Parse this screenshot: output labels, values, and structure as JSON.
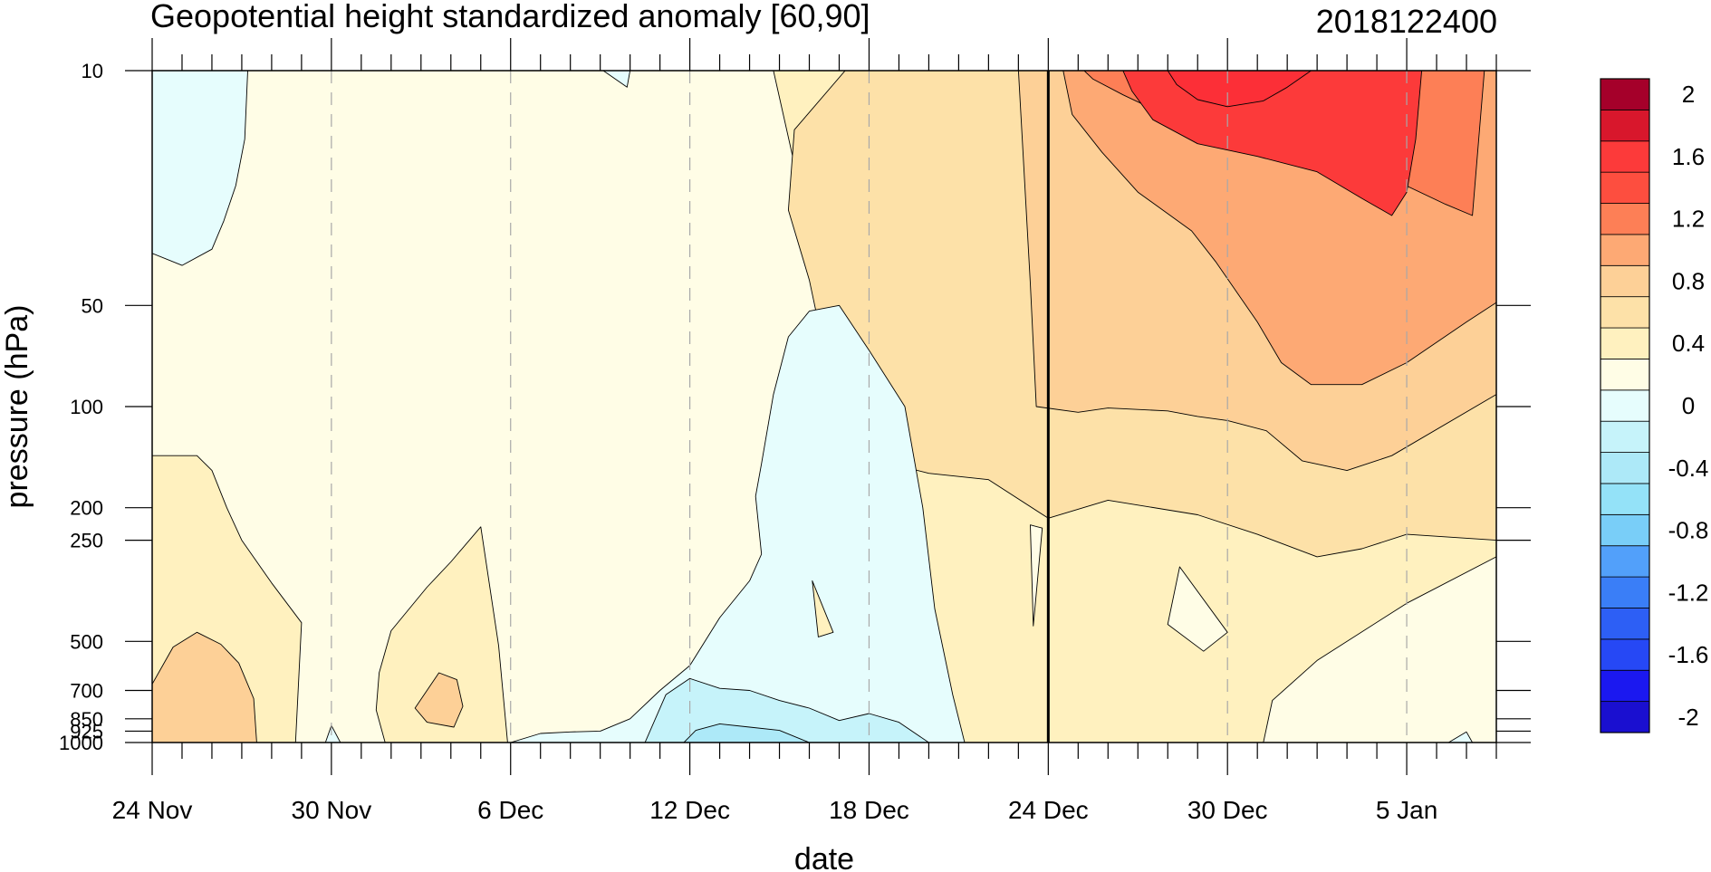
{
  "chart_data": {
    "type": "heatmap",
    "title": "Geopotential height standardized anomaly [60,90]",
    "subtitle": "2018122400",
    "xlabel": "date",
    "ylabel": "pressure (hPa)",
    "x_days_range": [
      0,
      45
    ],
    "x_ticks": [
      {
        "day": 0,
        "label": "24 Nov"
      },
      {
        "day": 6,
        "label": "30 Nov"
      },
      {
        "day": 12,
        "label": "6 Dec"
      },
      {
        "day": 18,
        "label": "12 Dec"
      },
      {
        "day": 24,
        "label": "18 Dec"
      },
      {
        "day": 30,
        "label": "24 Dec"
      },
      {
        "day": 36,
        "label": "30 Dec"
      },
      {
        "day": 42,
        "label": "5 Jan"
      }
    ],
    "y_scale": "log",
    "y_range": [
      1000,
      10
    ],
    "y_ticks": [
      {
        "value": 10,
        "label": "10"
      },
      {
        "value": 50,
        "label": "50"
      },
      {
        "value": 100,
        "label": "100"
      },
      {
        "value": 200,
        "label": "200"
      },
      {
        "value": 250,
        "label": "250"
      },
      {
        "value": 500,
        "label": "500"
      },
      {
        "value": 700,
        "label": "700"
      },
      {
        "value": 850,
        "label": "850"
      },
      {
        "value": 925,
        "label": "925"
      },
      {
        "value": 1000,
        "label": "1000"
      }
    ],
    "current_date_line_day": 30,
    "contour_levels": [
      -2,
      -1.8,
      -1.6,
      -1.4,
      -1.2,
      -1,
      -0.8,
      -0.6,
      -0.4,
      -0.2,
      0,
      0.2,
      0.4,
      0.6,
      0.8,
      1,
      1.2,
      1.4,
      1.6,
      1.8,
      2
    ],
    "colorbar": {
      "colors": [
        "#1a0fd0",
        "#1b18f0",
        "#2648f5",
        "#2d5ff5",
        "#3a7ef7",
        "#52a0fa",
        "#79cef8",
        "#94e2f8",
        "#ade9f8",
        "#c6f3fa",
        "#e6fdfd",
        "#fffde6",
        "#fff1bf",
        "#fde1a8",
        "#fdd097",
        "#fda974",
        "#fd7f56",
        "#fd4e3f",
        "#fc3a3a",
        "#d8172c",
        "#a5002a"
      ],
      "labels": [
        {
          "level": 2,
          "text": "2"
        },
        {
          "level": 1.6,
          "text": "1.6"
        },
        {
          "level": 1.2,
          "text": "1.2"
        },
        {
          "level": 0.8,
          "text": "0.8"
        },
        {
          "level": 0.4,
          "text": "0.4"
        },
        {
          "level": 0,
          "text": "0"
        },
        {
          "level": -0.4,
          "text": "-0.4"
        },
        {
          "level": -0.8,
          "text": "-0.8"
        },
        {
          "level": -1.2,
          "text": "-1.2"
        },
        {
          "level": -1.6,
          "text": "-1.6"
        },
        {
          "level": -2,
          "text": "-2"
        }
      ]
    },
    "regions": [
      {
        "name": "positive-anomaly-0-0.2-background",
        "color": "#fffde6",
        "points": [
          [
            0,
            10
          ],
          [
            45,
            10
          ],
          [
            45,
            1000
          ],
          [
            0,
            1000
          ]
        ]
      },
      {
        "name": "positive-anomaly-0.2-0.4-late-period",
        "color": "#fff1bf",
        "points": [
          [
            20.8,
            10
          ],
          [
            45,
            10
          ],
          [
            45,
            280
          ],
          [
            42,
            385
          ],
          [
            39,
            570
          ],
          [
            37.5,
            750
          ],
          [
            37.2,
            1000
          ],
          [
            26.5,
            1000
          ],
          [
            25.8,
            860
          ],
          [
            25.4,
            610
          ],
          [
            25.1,
            430
          ],
          [
            24.3,
            245
          ],
          [
            23.3,
            145
          ],
          [
            22.8,
            78
          ],
          [
            22,
            30
          ]
        ]
      },
      {
        "name": "positive-anomaly-0.4-0.6-upper-late",
        "color": "#fde1a8",
        "points": [
          [
            23.2,
            10
          ],
          [
            45,
            10
          ],
          [
            45,
            250
          ],
          [
            42,
            240
          ],
          [
            40.5,
            265
          ],
          [
            39,
            280
          ],
          [
            37,
            240
          ],
          [
            35,
            210
          ],
          [
            32,
            190
          ],
          [
            30,
            215
          ],
          [
            28,
            165
          ],
          [
            26,
            158
          ],
          [
            25,
            150
          ],
          [
            24,
            148
          ],
          [
            23.3,
            130
          ],
          [
            22.6,
            75
          ],
          [
            22,
            42
          ],
          [
            21.3,
            26
          ],
          [
            21.5,
            15
          ]
        ]
      },
      {
        "name": "positive-anomaly-0.6-0.8-upper-late",
        "color": "#fdd097",
        "points": [
          [
            29,
            10
          ],
          [
            45,
            10
          ],
          [
            45,
            92
          ],
          [
            41.5,
            140
          ],
          [
            40,
            155
          ],
          [
            38.5,
            145
          ],
          [
            37.3,
            118
          ],
          [
            36,
            110
          ],
          [
            35,
            107
          ],
          [
            34,
            103
          ],
          [
            32,
            101
          ],
          [
            31,
            104
          ],
          [
            29.6,
            100
          ],
          [
            29.4,
            43
          ]
        ]
      },
      {
        "name": "positive-anomaly-0.8-1-upper-late",
        "color": "#fda974",
        "points": [
          [
            30.5,
            10
          ],
          [
            45,
            10
          ],
          [
            45,
            49
          ],
          [
            44,
            56
          ],
          [
            42,
            74
          ],
          [
            40.5,
            86
          ],
          [
            38.8,
            86
          ],
          [
            37.8,
            74
          ],
          [
            37,
            56
          ],
          [
            35.6,
            37
          ],
          [
            34.8,
            30
          ],
          [
            33,
            23
          ],
          [
            31.8,
            17.5
          ],
          [
            30.8,
            13.5
          ]
        ]
      },
      {
        "name": "positive-anomaly-1-1.2-stratosphere",
        "color": "#fd7f56",
        "points": [
          [
            31.2,
            10
          ],
          [
            44.6,
            10
          ],
          [
            44.2,
            27
          ],
          [
            43.3,
            25
          ],
          [
            41,
            20
          ],
          [
            38.5,
            17
          ],
          [
            36.5,
            15
          ],
          [
            35,
            14
          ],
          [
            33.5,
            13
          ],
          [
            32.5,
            11.8
          ],
          [
            31.5,
            10.6
          ]
        ]
      },
      {
        "name": "positive-anomaly-1.2-1.4-stratosphere-core",
        "color": "#fc3a3a",
        "points": [
          [
            32.5,
            10
          ],
          [
            42.5,
            10
          ],
          [
            42.3,
            16
          ],
          [
            42,
            23
          ],
          [
            41.5,
            27
          ],
          [
            40.5,
            24
          ],
          [
            39,
            20
          ],
          [
            37,
            18
          ],
          [
            35,
            16.5
          ],
          [
            33.5,
            14
          ],
          [
            32.8,
            11.5
          ]
        ]
      },
      {
        "name": "positive-anomaly-1.4-1.6-stratosphere-peak",
        "color": "#fc2f37",
        "points": [
          [
            34,
            10
          ],
          [
            38.8,
            10
          ],
          [
            38,
            11.2
          ],
          [
            37.2,
            12.3
          ],
          [
            36,
            12.8
          ],
          [
            35,
            12.2
          ],
          [
            34.3,
            11
          ]
        ]
      },
      {
        "name": "negative-anomaly-top-left",
        "color": "#e6fdfd",
        "points": [
          [
            0,
            10
          ],
          [
            3.2,
            10
          ],
          [
            3.1,
            16
          ],
          [
            2.8,
            22
          ],
          [
            2.4,
            28
          ],
          [
            2,
            34
          ],
          [
            1,
            38
          ],
          [
            0,
            35
          ]
        ]
      },
      {
        "name": "negative-anomaly-top-small",
        "color": "#e6fdfd",
        "points": [
          [
            15.1,
            10
          ],
          [
            16,
            10
          ],
          [
            15.9,
            11.2
          ]
        ]
      },
      {
        "name": "negative-anomaly-mid-troposphere",
        "color": "#e6fdfd",
        "points": [
          [
            12,
            1000
          ],
          [
            13,
            940
          ],
          [
            14,
            930
          ],
          [
            15,
            925
          ],
          [
            16,
            850
          ],
          [
            17,
            700
          ],
          [
            18,
            590
          ],
          [
            19,
            425
          ],
          [
            20,
            330
          ],
          [
            20.4,
            275
          ],
          [
            20.2,
            185
          ],
          [
            20.4,
            148
          ],
          [
            20.8,
            92
          ],
          [
            21.3,
            62
          ],
          [
            22,
            52
          ],
          [
            23,
            50
          ],
          [
            24,
            68
          ],
          [
            25.2,
            100
          ],
          [
            25.8,
            200
          ],
          [
            26.2,
            400
          ],
          [
            26.8,
            720
          ],
          [
            27.2,
            1000
          ]
        ]
      },
      {
        "name": "negative-anomaly-lower-0.2-0.4",
        "color": "#c6f3fa",
        "points": [
          [
            16.5,
            1000
          ],
          [
            17.2,
            720
          ],
          [
            18,
            645
          ],
          [
            19,
            690
          ],
          [
            20,
            700
          ],
          [
            21,
            750
          ],
          [
            22,
            790
          ],
          [
            23,
            860
          ],
          [
            24,
            820
          ],
          [
            25,
            870
          ],
          [
            26,
            1000
          ]
        ]
      },
      {
        "name": "negative-anomaly-lower-0.4-0.6",
        "color": "#ade9f8",
        "points": [
          [
            17.8,
            1000
          ],
          [
            18.2,
            920
          ],
          [
            19,
            880
          ],
          [
            20,
            900
          ],
          [
            21,
            920
          ],
          [
            22,
            1000
          ]
        ]
      },
      {
        "name": "negative-anomaly-surface-6nov",
        "color": "#e6fdfd",
        "points": [
          [
            5.8,
            1000
          ],
          [
            6,
            890
          ],
          [
            6.3,
            1000
          ]
        ]
      },
      {
        "name": "negative-anomaly-surface-jan",
        "color": "#e6fdfd",
        "points": [
          [
            43.4,
            1000
          ],
          [
            44,
            930
          ],
          [
            44.2,
            1000
          ]
        ]
      },
      {
        "name": "positive-anomaly-0.2-0.4-lower-left",
        "color": "#fff1bf",
        "points": [
          [
            0,
            140
          ],
          [
            1.5,
            140
          ],
          [
            2,
            155
          ],
          [
            2.5,
            200
          ],
          [
            3,
            250
          ],
          [
            4,
            335
          ],
          [
            5,
            440
          ],
          [
            4.8,
            1000
          ],
          [
            0,
            1000
          ]
        ]
      },
      {
        "name": "positive-anomaly-0.4-0.6-lower-left",
        "color": "#fdd097",
        "points": [
          [
            0,
            670
          ],
          [
            0.7,
            520
          ],
          [
            1.5,
            470
          ],
          [
            2.3,
            510
          ],
          [
            2.9,
            580
          ],
          [
            3.4,
            740
          ],
          [
            3.5,
            1000
          ],
          [
            0,
            1000
          ]
        ]
      },
      {
        "name": "positive-anomaly-0.2-0.4-early-december",
        "color": "#fff1bf",
        "points": [
          [
            7.8,
            1000
          ],
          [
            7.5,
            800
          ],
          [
            7.6,
            620
          ],
          [
            8,
            465
          ],
          [
            9.2,
            345
          ],
          [
            10,
            290
          ],
          [
            11,
            228
          ],
          [
            11.6,
            515
          ],
          [
            11.9,
            1000
          ]
        ]
      },
      {
        "name": "positive-anomaly-0.4-0.6-early-december",
        "color": "#fdd097",
        "points": [
          [
            8.8,
            790
          ],
          [
            9.2,
            700
          ],
          [
            9.6,
            620
          ],
          [
            10.2,
            650
          ],
          [
            10.4,
            780
          ],
          [
            10.1,
            900
          ],
          [
            9.2,
            870
          ]
        ]
      },
      {
        "name": "positive-anomaly-sliver-23dec",
        "color": "#fffde6",
        "points": [
          [
            29.4,
            225
          ],
          [
            29.8,
            230
          ],
          [
            29.5,
            450
          ]
        ]
      },
      {
        "name": "positive-anomaly-sliver-16dec",
        "color": "#fff1bf",
        "points": [
          [
            22.1,
            330
          ],
          [
            22.3,
            485
          ],
          [
            22.8,
            470
          ]
        ]
      },
      {
        "name": "positive-anomaly-near-zero-29dec",
        "color": "#fffde6",
        "points": [
          [
            34.4,
            300
          ],
          [
            36,
            470
          ],
          [
            35.2,
            535
          ],
          [
            34,
            445
          ]
        ]
      }
    ]
  }
}
